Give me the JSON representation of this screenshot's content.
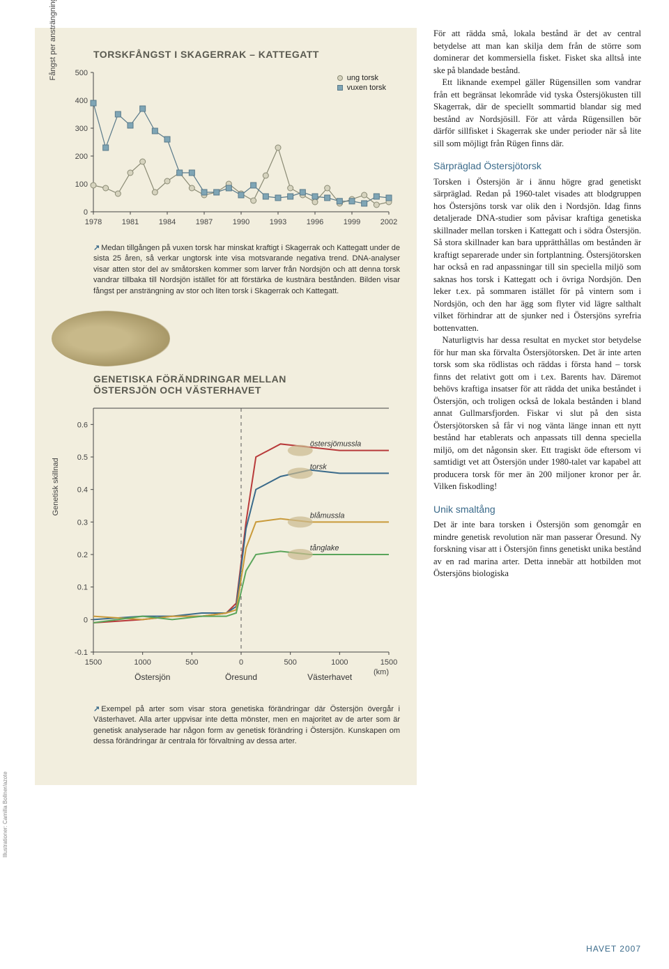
{
  "chart1": {
    "type": "line",
    "title": "TORSKFÅNGST I SKAGERRAK – KATTEGATT",
    "ylabel": "Fångst per ansträngning\n(kg fisk/tråltimme)",
    "legend": {
      "series_a": "ung torsk",
      "series_b": "vuxen torsk"
    },
    "x_ticks": [
      1978,
      1981,
      1984,
      1987,
      1990,
      1993,
      1996,
      1999,
      2002
    ],
    "y_ticks": [
      0,
      100,
      200,
      300,
      400,
      500
    ],
    "ylim": [
      0,
      500
    ],
    "xlim": [
      1978,
      2002
    ],
    "colors": {
      "series_a_line": "#8a8a74",
      "series_a_marker_fill": "#d6d3be",
      "series_b_line": "#5a7a8a",
      "series_b_marker_fill": "#7fa5b5",
      "axis": "#444444"
    },
    "series_a": {
      "x": [
        1978,
        1979,
        1980,
        1981,
        1982,
        1983,
        1984,
        1985,
        1986,
        1987,
        1988,
        1989,
        1990,
        1991,
        1992,
        1993,
        1994,
        1995,
        1996,
        1997,
        1998,
        1999,
        2000,
        2001,
        2002
      ],
      "y": [
        95,
        85,
        65,
        140,
        180,
        70,
        110,
        140,
        85,
        60,
        70,
        100,
        65,
        40,
        130,
        230,
        85,
        60,
        35,
        85,
        30,
        45,
        60,
        25,
        35
      ]
    },
    "series_b": {
      "x": [
        1978,
        1979,
        1980,
        1981,
        1982,
        1983,
        1984,
        1985,
        1986,
        1987,
        1988,
        1989,
        1990,
        1991,
        1992,
        1993,
        1994,
        1995,
        1996,
        1997,
        1998,
        1999,
        2000,
        2001,
        2002
      ],
      "y": [
        390,
        230,
        350,
        310,
        370,
        290,
        260,
        140,
        140,
        70,
        70,
        85,
        60,
        95,
        55,
        50,
        55,
        70,
        55,
        50,
        38,
        38,
        30,
        55,
        50
      ]
    },
    "caption": "Medan tillgången på vuxen torsk har minskat kraftigt i Skagerrak och Kattegatt under de sista 25 åren, så verkar ungtorsk inte visa motsvarande negativa trend. DNA-analyser visar atten stor del av småtorsken kommer som larver från Nordsjön och att denna torsk vandrar tillbaka till Nordsjön istället för att förstärka de kustnära bestånden. Bilden visar fångst per ansträngning av stor och liten torsk i Skagerrak och Kattegatt."
  },
  "chart2": {
    "type": "line",
    "title": "GENETISKA FÖRÄNDRINGAR MELLAN ÖSTERSJÖN OCH VÄSTERHAVET",
    "ylabel": "Genetisk skillnad",
    "y_ticks": [
      -0.1,
      0,
      0.1,
      0.2,
      0.3,
      0.4,
      0.5,
      0.6
    ],
    "ylim": [
      -0.1,
      0.65
    ],
    "xlim": [
      -1500,
      1500
    ],
    "x_ticks": [
      -1500,
      -1000,
      -500,
      0,
      500,
      1000,
      1500
    ],
    "x_tick_labels": [
      "1500",
      "1000",
      "500",
      "0",
      "500",
      "1000",
      "1500"
    ],
    "x_unit": "(km)",
    "x_region_labels": {
      "left": "Östersjön",
      "center": "Öresund",
      "right": "Västerhavet"
    },
    "divider_x": 0,
    "species": {
      "ostersjomussla": {
        "label": "östersjömussla",
        "color": "#b83a3a",
        "x": [
          -1500,
          -1000,
          -700,
          -400,
          -150,
          -50,
          50,
          150,
          400,
          700,
          1000,
          1500
        ],
        "y": [
          -0.01,
          0.0,
          0.01,
          0.01,
          0.02,
          0.05,
          0.3,
          0.5,
          0.54,
          0.53,
          0.52,
          0.52
        ]
      },
      "torsk": {
        "label": "torsk",
        "color": "#3a6a8a",
        "x": [
          -1500,
          -1000,
          -700,
          -400,
          -150,
          -50,
          50,
          150,
          400,
          700,
          1000,
          1500
        ],
        "y": [
          0.0,
          0.01,
          0.01,
          0.02,
          0.02,
          0.04,
          0.28,
          0.4,
          0.44,
          0.46,
          0.45,
          0.45
        ]
      },
      "blamussla": {
        "label": "blåmussla",
        "color": "#c99a3a",
        "x": [
          -1500,
          -1000,
          -700,
          -400,
          -150,
          -50,
          50,
          150,
          400,
          700,
          1000,
          1500
        ],
        "y": [
          0.01,
          0.0,
          0.01,
          0.01,
          0.02,
          0.03,
          0.22,
          0.3,
          0.31,
          0.3,
          0.3,
          0.3
        ]
      },
      "tanglake": {
        "label": "tånglake",
        "color": "#5aa55a",
        "x": [
          -1500,
          -1000,
          -700,
          -400,
          -150,
          -50,
          50,
          150,
          400,
          700,
          1000,
          1500
        ],
        "y": [
          -0.01,
          0.01,
          0.0,
          0.01,
          0.01,
          0.02,
          0.15,
          0.2,
          0.21,
          0.2,
          0.2,
          0.2
        ]
      }
    },
    "caption": "Exempel på arter som visar stora genetiska förändringar där Östersjön övergår i Västerhavet. Alla arter uppvisar inte detta mönster, men en majoritet av de arter som är genetisk analyserade har någon form av genetisk förändring i Östersjön. Kunskapen om dessa förändringar är centrala för förvaltning av dessa arter."
  },
  "article": {
    "p1": "För att rädda små, lokala bestånd är det av central betydelse att man kan skilja dem från de större som dominerar det kommersiella fisket. Fisket ska alltså inte ske på blandade bestånd.",
    "p2": "Ett liknande exempel gäller Rügensillen som vandrar från ett begränsat lekområde vid tyska Östersjökusten till Skagerrak, där de speciellt sommartid blandar sig med bestånd av Nordsjösill. För att vårda Rügensillen bör därför sillfisket i Skagerrak ske under perioder när så lite sill som möjligt från Rügen finns där.",
    "h1": "Särpräglad Östersjötorsk",
    "p3": "Torsken i Östersjön är i ännu högre grad genetiskt särpräglad. Redan på 1960-talet visades att blodgruppen hos Östersjöns torsk var olik den i Nordsjön. Idag finns detaljerade DNA-studier som påvisar kraftiga genetiska skillnader mellan torsken i Kattegatt och i södra Östersjön. Så stora skillnader kan bara upprätthållas om bestånden är kraftigt separerade under sin fortplantning. Östersjötorsken har också en rad anpassningar till sin speciella miljö som saknas hos torsk i Kattegatt och i övriga Nordsjön. Den leker t.ex. på sommaren istället för på vintern som i Nordsjön, och den har ägg som flyter vid lägre salthalt vilket förhindrar att de sjunker ned i Östersjöns syrefria bottenvatten.",
    "p4": "Naturligtvis har dessa resultat en mycket stor betydelse för hur man ska förvalta Östersjötorsken. Det är inte arten torsk som ska rödlistas och räddas i första hand – torsk finns det relativt gott om i t.ex. Barents hav. Däremot behövs kraftiga insatser för att rädda det unika beståndet i Östersjön, och troligen också de lokala bestånden i bland annat Gullmarsfjorden. Fiskar vi slut på den sista Östersjötorsken så får vi nog vänta länge innan ett nytt bestånd har etablerats och anpassats till denna speciella miljö, om det någonsin sker. Ett tragiskt öde eftersom vi samtidigt vet att Östersjön under 1980-talet var kapabel att producera torsk för mer än 200 miljoner kronor per år. Vilken fiskodling!",
    "h2": "Unik smaltång",
    "p5": "Det är inte bara torsken i Östersjön som genomgår en mindre genetisk revolution när man passerar Öresund. Ny forskning visar att i Östersjön finns genetiskt unika bestånd av en rad marina arter. Detta innebär att hotbilden mot Östersjöns biologiska"
  },
  "credit": "Illustrationer: Camilla Bollner/azote",
  "footer": "HAVET 2007"
}
